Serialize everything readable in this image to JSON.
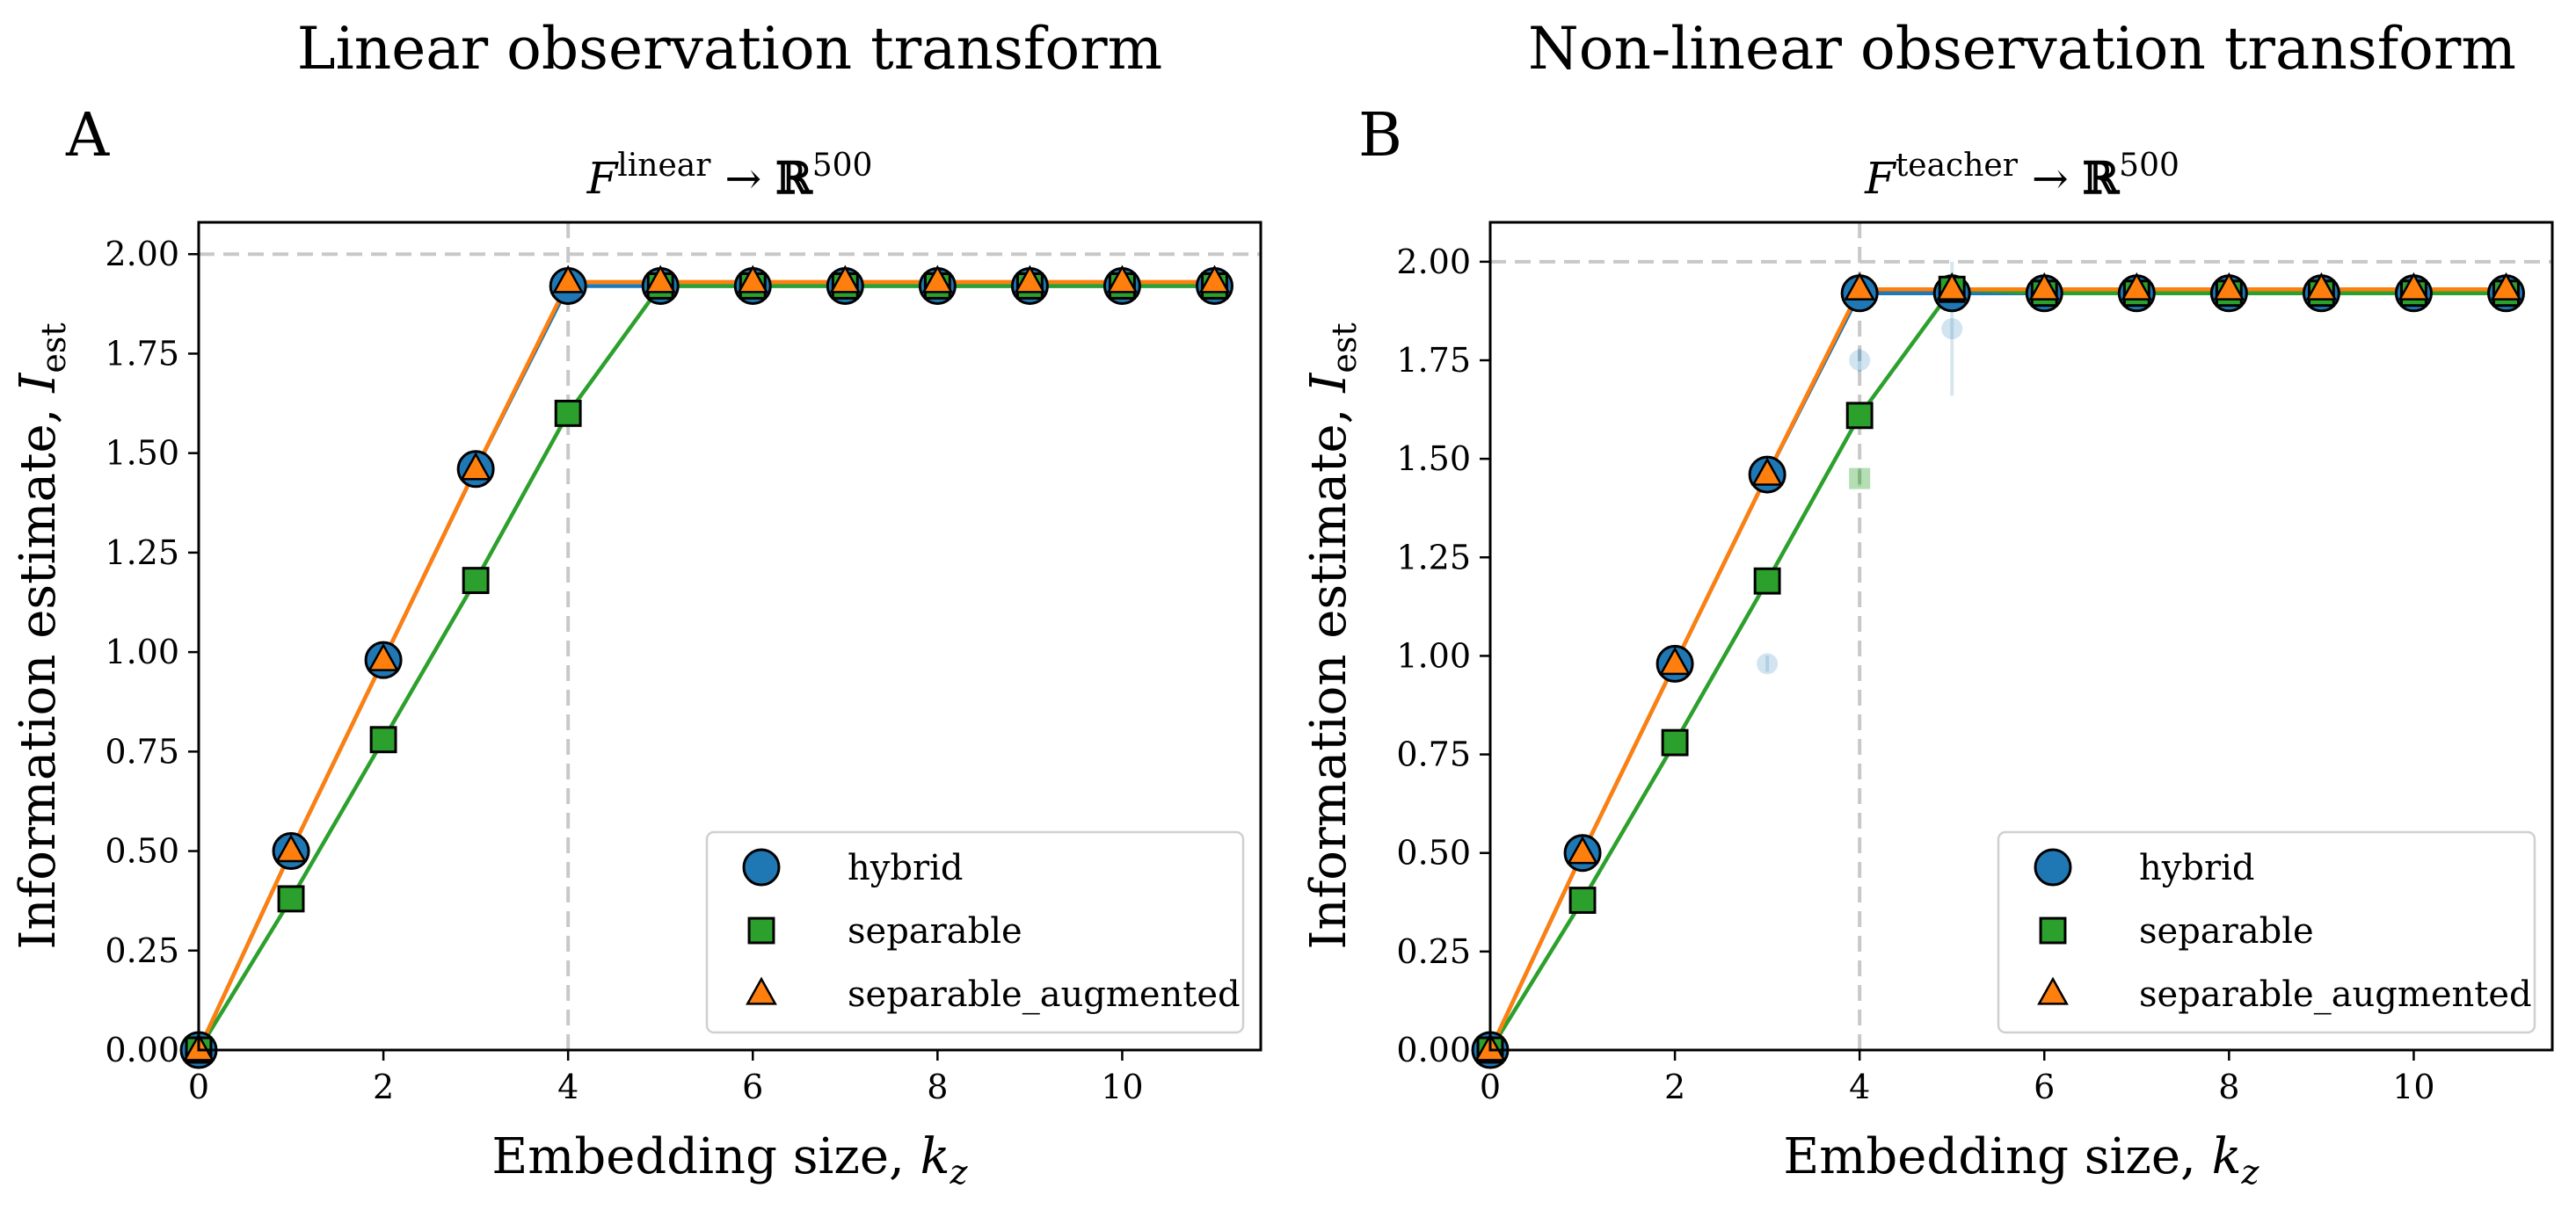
{
  "chart_data": [
    {
      "type": "line",
      "suptitle": "Linear observation transform",
      "panel_label": "A",
      "title": "F^linear → ℝ^500",
      "title_parts": {
        "base": "F",
        "sup": "linear",
        "arrow": "→",
        "space": "ℝ",
        "dim": "500"
      },
      "xlabel": "Embedding size, k_z",
      "xlabel_parts": {
        "text": "Embedding size, ",
        "var": "k",
        "sub": "z"
      },
      "ylabel": "Information estimate, I_est",
      "ylabel_parts": {
        "text": "Information estimate, ",
        "var": "I",
        "sub": "est"
      },
      "xlim": [
        0,
        11.5
      ],
      "ylim": [
        0,
        2.08
      ],
      "xticks": [
        0,
        2,
        4,
        6,
        8,
        10
      ],
      "yticks": [
        "0.00",
        "0.25",
        "0.50",
        "0.75",
        "1.00",
        "1.25",
        "1.50",
        "1.75",
        "2.00"
      ],
      "reference_lines": {
        "hline_y": 2.0,
        "vline_x": 4
      },
      "legend_position": "lower-right",
      "series": [
        {
          "name": "hybrid",
          "marker": "circle",
          "color": "#1f77b4",
          "x": [
            0,
            1,
            2,
            3,
            4,
            5,
            6,
            7,
            8,
            9,
            10,
            11
          ],
          "y": [
            0.0,
            0.5,
            0.98,
            1.46,
            1.92,
            1.92,
            1.92,
            1.92,
            1.92,
            1.92,
            1.92,
            1.92
          ]
        },
        {
          "name": "separable",
          "marker": "square",
          "color": "#2ca02c",
          "x": [
            0,
            1,
            2,
            3,
            4,
            5,
            6,
            7,
            8,
            9,
            10,
            11
          ],
          "y": [
            0.0,
            0.38,
            0.78,
            1.18,
            1.6,
            1.92,
            1.92,
            1.92,
            1.92,
            1.92,
            1.92,
            1.92
          ]
        },
        {
          "name": "separable_augmented",
          "marker": "triangle",
          "color": "#ff7f0e",
          "x": [
            0,
            1,
            2,
            3,
            4,
            5,
            6,
            7,
            8,
            9,
            10,
            11
          ],
          "y": [
            0.0,
            0.5,
            0.98,
            1.46,
            1.93,
            1.93,
            1.93,
            1.93,
            1.93,
            1.93,
            1.93,
            1.93
          ]
        }
      ],
      "faint_points": []
    },
    {
      "type": "line",
      "suptitle": "Non-linear observation transform",
      "panel_label": "B",
      "title": "F^teacher → ℝ^500",
      "title_parts": {
        "base": "F",
        "sup": "teacher",
        "arrow": "→",
        "space": "ℝ",
        "dim": "500"
      },
      "xlabel": "Embedding size, k_z",
      "xlabel_parts": {
        "text": "Embedding size, ",
        "var": "k",
        "sub": "z"
      },
      "ylabel": "Information estimate, I_est",
      "ylabel_parts": {
        "text": "Information estimate, ",
        "var": "I",
        "sub": "est"
      },
      "xlim": [
        0,
        11.5
      ],
      "ylim": [
        0,
        2.1
      ],
      "xticks": [
        0,
        2,
        4,
        6,
        8,
        10
      ],
      "yticks": [
        "0.00",
        "0.25",
        "0.50",
        "0.75",
        "1.00",
        "1.25",
        "1.50",
        "1.75",
        "2.00"
      ],
      "reference_lines": {
        "hline_y": 2.0,
        "vline_x": 4
      },
      "legend_position": "lower-right",
      "series": [
        {
          "name": "hybrid",
          "marker": "circle",
          "color": "#1f77b4",
          "x": [
            0,
            1,
            2,
            3,
            4,
            5,
            6,
            7,
            8,
            9,
            10,
            11
          ],
          "y": [
            0.0,
            0.5,
            0.98,
            1.46,
            1.92,
            1.92,
            1.92,
            1.92,
            1.92,
            1.92,
            1.92,
            1.92
          ]
        },
        {
          "name": "separable",
          "marker": "square",
          "color": "#2ca02c",
          "x": [
            0,
            1,
            2,
            3,
            4,
            5,
            6,
            7,
            8,
            9,
            10,
            11
          ],
          "y": [
            0.0,
            0.38,
            0.78,
            1.19,
            1.61,
            1.93,
            1.92,
            1.92,
            1.92,
            1.92,
            1.92,
            1.92
          ]
        },
        {
          "name": "separable_augmented",
          "marker": "triangle",
          "color": "#ff7f0e",
          "x": [
            0,
            1,
            2,
            3,
            4,
            5,
            6,
            7,
            8,
            9,
            10,
            11
          ],
          "y": [
            0.0,
            0.5,
            0.98,
            1.46,
            1.93,
            1.93,
            1.93,
            1.93,
            1.93,
            1.93,
            1.93,
            1.93
          ]
        }
      ],
      "faint_points": [
        {
          "series": "hybrid",
          "x": 3,
          "y": 0.98,
          "err": 0.02
        },
        {
          "series": "hybrid",
          "x": 4,
          "y": 1.75,
          "err": 0.03
        },
        {
          "series": "hybrid",
          "x": 5,
          "y": 1.83,
          "err": 0.17
        },
        {
          "series": "separable",
          "x": 4,
          "y": 1.45,
          "err": 0.02
        }
      ]
    }
  ]
}
